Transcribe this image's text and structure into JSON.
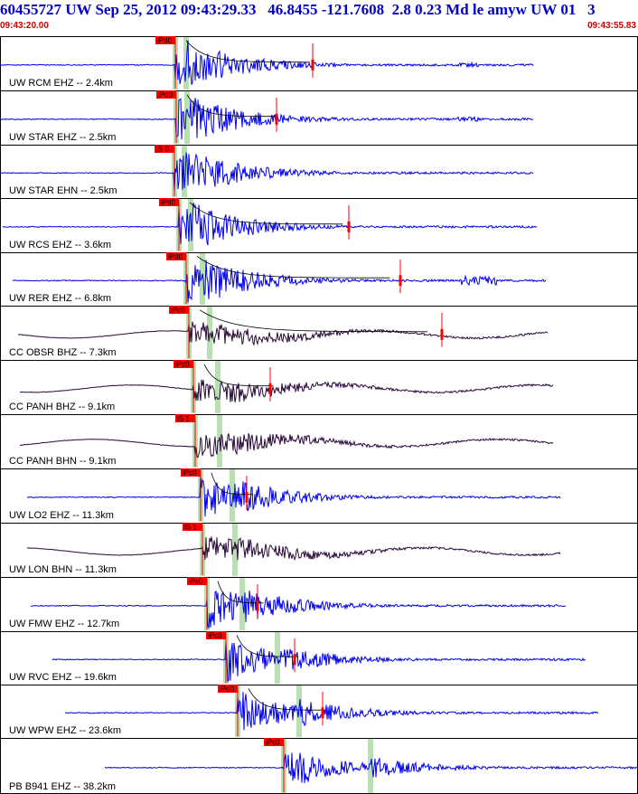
{
  "header": {
    "title": "60455727 UW Sep 25, 2012 09:43:29.33   46.8455 -121.7608  2.8 0.23 Md le amyw UW 01   3",
    "start_time": "09:43:20.00",
    "end_time": "09:43:55.83"
  },
  "colors": {
    "header_text": "#0000cc",
    "time_text": "#cc0000",
    "trace_primary": "#0000ee",
    "trace_dark": "#2a0a3a",
    "pick": "#ff0000",
    "phase_window": "#b8e0b0",
    "decay": "#000000"
  },
  "chart_data": {
    "type": "line",
    "title": "60455727 UW Sep 25, 2012 09:43:29.33   46.8455 -121.7608  2.8 0.23 Md le amyw UW 01   3",
    "x_range": [
      "09:43:20.00",
      "09:43:55.83"
    ],
    "series": [
      {
        "name": "UW RCM EHZ -- 2.4km",
        "distance_km": 2.4,
        "pick": "iPd0",
        "color": "#0000ee"
      },
      {
        "name": "UW STAR EHZ -- 2.5km",
        "distance_km": 2.5,
        "pick": "iPd0",
        "color": "#0000ee"
      },
      {
        "name": "UW STAR EHN -- 2.5km",
        "distance_km": 2.5,
        "pick": "iS 0",
        "color": "#0000ee"
      },
      {
        "name": "UW RCS EHZ -- 3.6km",
        "distance_km": 3.6,
        "pick": "iPd0",
        "color": "#0000ee"
      },
      {
        "name": "UW RER EHZ -- 6.8km",
        "distance_km": 6.8,
        "pick": "iPd0",
        "color": "#0000ee"
      },
      {
        "name": "CC OBSR BHZ -- 7.3km",
        "distance_km": 7.3,
        "pick": "iPc0",
        "color": "#2a0a3a"
      },
      {
        "name": "CC PANH BHZ -- 9.1km",
        "distance_km": 9.1,
        "pick": "iPc0",
        "color": "#2a0a3a"
      },
      {
        "name": "CC PANH BHN -- 9.1km",
        "distance_km": 9.1,
        "pick": "iS 1",
        "color": "#2a0a3a"
      },
      {
        "name": "UW LO2 EHZ -- 11.3km",
        "distance_km": 11.3,
        "pick": "iPc0",
        "color": "#0000ee"
      },
      {
        "name": "UW LON BHN -- 11.3km",
        "distance_km": 11.3,
        "pick": "iS 1",
        "color": "#2a0a3a"
      },
      {
        "name": "UW FMW EHZ -- 12.7km",
        "distance_km": 12.7,
        "pick": "iPc0",
        "color": "#0000ee"
      },
      {
        "name": "UW RVC EHZ -- 19.6km",
        "distance_km": 19.6,
        "pick": "iPc0",
        "color": "#0000ee"
      },
      {
        "name": "UW WPW EHZ -- 23.6km",
        "distance_km": 23.6,
        "pick": "iPd0",
        "color": "#0000ee"
      },
      {
        "name": "PB B941 EHZ -- 38.2km",
        "distance_km": 38.2,
        "pick": "iPc0",
        "color": "#0000ee"
      }
    ],
    "legend": "none",
    "grid": false
  }
}
